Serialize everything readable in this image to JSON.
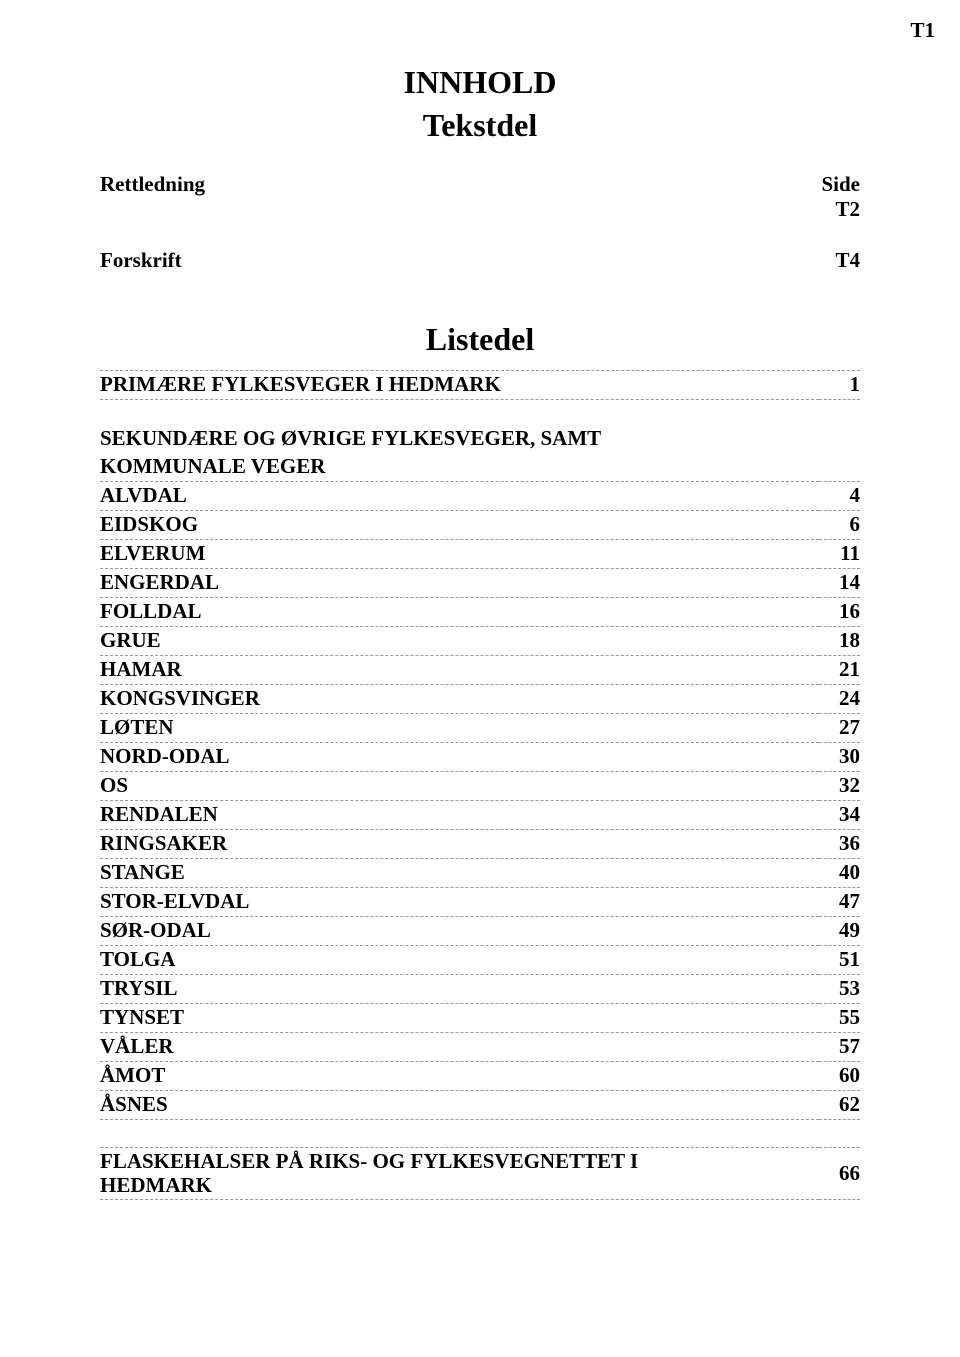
{
  "page_marker": "T1",
  "heading_line1": "INNHOLD",
  "heading_line2": "Tekstdel",
  "meta1": {
    "label": "Rettledning",
    "side_label": "Side",
    "value": "T2"
  },
  "meta2": {
    "label": "Forskrift",
    "value": "T4"
  },
  "listedel_heading": "Listedel",
  "toc": [
    {
      "label": "PRIMÆRE FYLKESVEGER I HEDMARK",
      "page": "1"
    }
  ],
  "subhead": {
    "line1": "SEKUNDÆRE OG ØVRIGE FYLKESVEGER, SAMT",
    "line2": "KOMMUNALE VEGER"
  },
  "municipalities": [
    {
      "label": "ALVDAL",
      "page": "4"
    },
    {
      "label": "EIDSKOG",
      "page": "6"
    },
    {
      "label": "ELVERUM",
      "page": "11"
    },
    {
      "label": "ENGERDAL",
      "page": "14"
    },
    {
      "label": "FOLLDAL",
      "page": "16"
    },
    {
      "label": "GRUE",
      "page": "18"
    },
    {
      "label": "HAMAR",
      "page": "21"
    },
    {
      "label": "KONGSVINGER",
      "page": "24"
    },
    {
      "label": "LØTEN",
      "page": "27"
    },
    {
      "label": "NORD-ODAL",
      "page": "30"
    },
    {
      "label": "OS",
      "page": "32"
    },
    {
      "label": "RENDALEN",
      "page": "34"
    },
    {
      "label": "RINGSAKER",
      "page": "36"
    },
    {
      "label": "STANGE",
      "page": "40"
    },
    {
      "label": "STOR-ELVDAL",
      "page": "47"
    },
    {
      "label": "SØR-ODAL",
      "page": "49"
    },
    {
      "label": "TOLGA",
      "page": "51"
    },
    {
      "label": "TRYSIL",
      "page": "53"
    },
    {
      "label": "TYNSET",
      "page": "55"
    },
    {
      "label": "VÅLER",
      "page": "57"
    },
    {
      "label": "ÅMOT",
      "page": "60"
    },
    {
      "label": "ÅSNES",
      "page": "62"
    }
  ],
  "final": {
    "line1": "FLASKEHALSER PÅ RIKS- OG FYLKESVEGNETTET I",
    "line2": "HEDMARK",
    "page": "66"
  }
}
